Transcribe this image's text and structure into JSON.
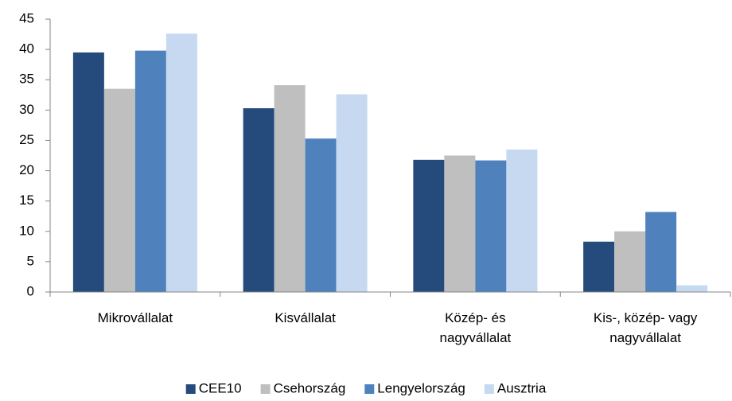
{
  "chart_data": {
    "type": "bar",
    "categories": [
      "Mikrovállalat",
      "Kisvállalat",
      "Közép- és\nnagyvállalat",
      "Kis-, közép- vagy\nnagyvállalat"
    ],
    "series": [
      {
        "name": "CEE10",
        "color": "#254a7c",
        "values": [
          39.5,
          30.3,
          21.8,
          8.3
        ]
      },
      {
        "name": "Csehország",
        "color": "#bfbfbf",
        "values": [
          33.5,
          34.1,
          22.5,
          10.0
        ]
      },
      {
        "name": "Lengyelország",
        "color": "#4f81bd",
        "values": [
          39.8,
          25.3,
          21.7,
          13.2
        ]
      },
      {
        "name": "Ausztria",
        "color": "#c6d9f1",
        "values": [
          42.6,
          32.6,
          23.5,
          1.1
        ]
      }
    ],
    "ylim": [
      0,
      45
    ],
    "yticks": [
      0,
      5,
      10,
      15,
      20,
      25,
      30,
      35,
      40,
      45
    ],
    "grid": false,
    "legend": "bottom"
  }
}
